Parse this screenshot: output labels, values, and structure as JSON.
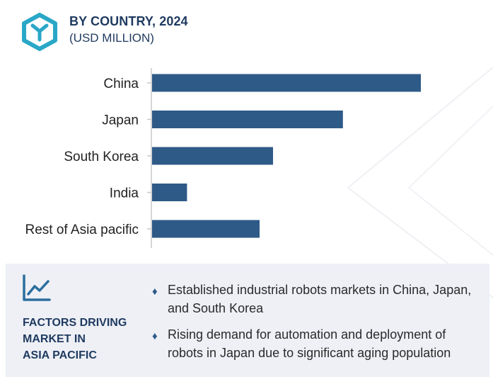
{
  "header": {
    "title": "BY COUNTRY, 2024",
    "subtitle": "(USD MILLION)"
  },
  "colors": {
    "bar": "#2e5a87",
    "accent": "#2b6f9e",
    "logo": "#29a7c7",
    "heading": "#1f3a5f",
    "panel_bg": "#eef0f6"
  },
  "chart_data": {
    "type": "bar",
    "orientation": "horizontal",
    "categories": [
      "China",
      "Japan",
      "South Korea",
      "India",
      "Rest of Asia pacific"
    ],
    "values": [
      100,
      71,
      45,
      13,
      40
    ],
    "xlim": [
      0,
      100
    ],
    "grid": false,
    "title": "BY COUNTRY, 2024",
    "xlabel": "",
    "ylabel": ""
  },
  "panel": {
    "heading_lines": [
      "FACTORS DRIVING",
      "MARKET IN",
      "ASIA PACIFIC"
    ],
    "icon": "trend-chart-icon",
    "bullets": [
      "Established industrial robots markets in China, Japan, and South Korea",
      "Rising demand for automation and deployment of robots in Japan due to significant aging population"
    ]
  },
  "logo_icon": "hexagon-logo-icon",
  "bullet_icon": "diamond-bullet-icon"
}
